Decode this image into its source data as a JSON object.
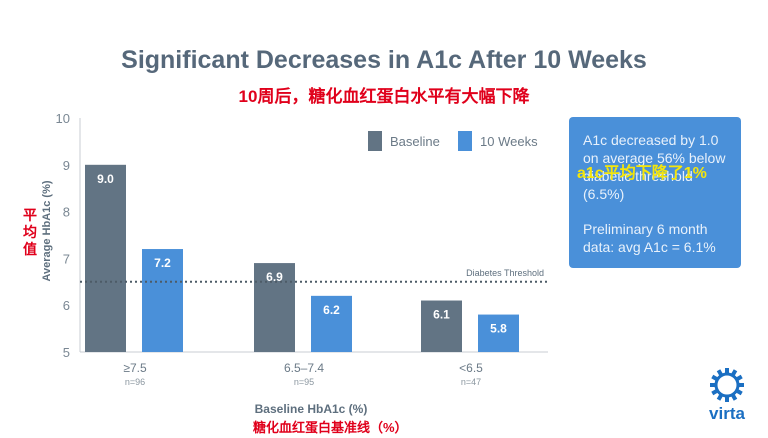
{
  "chart_data": {
    "type": "bar",
    "title": "Significant Decreases in A1c After 10 Weeks",
    "subtitle_cn": "10周后，糖化血红蛋白水平有大幅下降",
    "categories": [
      "≥7.5",
      "6.5–7.4",
      "<6.5"
    ],
    "category_counts": [
      "n=96",
      "n=95",
      "n=47"
    ],
    "series": [
      {
        "name": "Baseline",
        "color": "#627484",
        "values": [
          9.0,
          6.9,
          6.1
        ]
      },
      {
        "name": "10 Weeks",
        "color": "#4a90d9",
        "values": [
          7.2,
          6.2,
          5.8
        ]
      }
    ],
    "value_labels": [
      [
        "9.0",
        "6.9",
        "6.1"
      ],
      [
        "7.2",
        "6.2",
        "5.8"
      ]
    ],
    "ylabel": "Average HbA1c (%)",
    "ylabel_cn": "平均值",
    "xlabel": "Baseline HbA1c (%)",
    "xlabel_cn": "糖化血红蛋白基准线（%）",
    "ylim": [
      5,
      10
    ],
    "yticks": [
      5,
      6,
      7,
      8,
      9,
      10
    ],
    "threshold": {
      "value": 6.5,
      "label": "Diabetes Threshold"
    },
    "grid": false,
    "legend_position": "top-right"
  },
  "callout": {
    "text1": "A1c decreased by 1.0 on average 56% below diabetic threshold (6.5%)",
    "overlay_cn": "a1c平均下降了1%",
    "text2": "Preliminary 6 month data: avg A1c = 6.1%"
  },
  "logo": {
    "text": "virta",
    "icon": "virta-gear-icon",
    "color": "#1b6fc2"
  }
}
